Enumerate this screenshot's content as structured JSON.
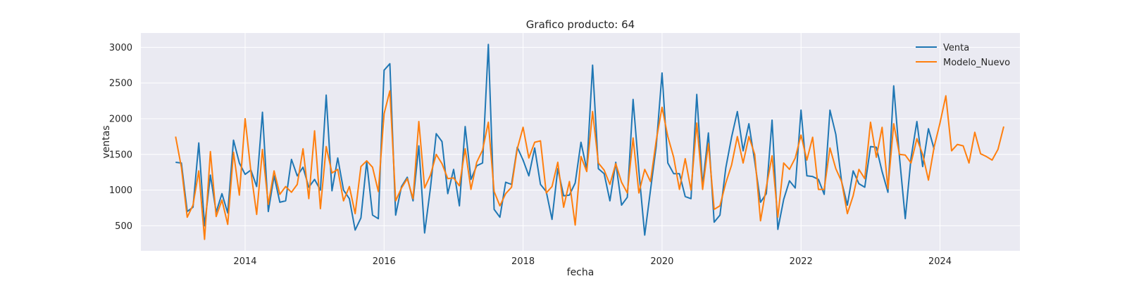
{
  "chart_data": {
    "type": "line",
    "title": "Grafico producto: 64",
    "xlabel": "fecha",
    "ylabel": "ventas",
    "xlim": [
      2012.5,
      2025.15
    ],
    "ylim": [
      150,
      3200
    ],
    "yticks": [
      500,
      1000,
      1500,
      2000,
      2500,
      3000
    ],
    "xticks": [
      2014,
      2016,
      2018,
      2020,
      2022,
      2024
    ],
    "grid": true,
    "legend_position": "top-right",
    "colors": {
      "background": "#eaeaf2",
      "Venta": "#1f77b4",
      "Modelo_Nuevo": "#ff7f0e"
    },
    "series": [
      {
        "name": "Venta",
        "start": "2013-01",
        "frequency": "monthly",
        "values": [
          1390,
          1380,
          700,
          760,
          1660,
          500,
          1210,
          690,
          950,
          680,
          1700,
          1380,
          1220,
          1280,
          1050,
          2090,
          700,
          1200,
          830,
          850,
          1430,
          1200,
          1320,
          1040,
          1150,
          1000,
          2330,
          990,
          1450,
          1000,
          880,
          440,
          610,
          1400,
          650,
          600,
          2680,
          2770,
          650,
          1050,
          1180,
          850,
          1620,
          400,
          1030,
          1790,
          1680,
          950,
          1290,
          780,
          1890,
          1150,
          1340,
          1380,
          3040,
          730,
          620,
          1110,
          1080,
          1600,
          1420,
          1200,
          1590,
          1080,
          980,
          590,
          1300,
          920,
          930,
          1100,
          1670,
          1290,
          2750,
          1300,
          1230,
          850,
          1390,
          790,
          900,
          2270,
          1270,
          370,
          1000,
          1620,
          2640,
          1380,
          1230,
          1230,
          910,
          880,
          2340,
          1060,
          1800,
          550,
          650,
          1310,
          1740,
          2100,
          1550,
          1930,
          1400,
          830,
          950,
          1980,
          450,
          870,
          1130,
          1030,
          2120,
          1200,
          1190,
          1150,
          940,
          2120,
          1780,
          1120,
          790,
          1270,
          1090,
          1040,
          1610,
          1600,
          1260,
          970,
          2460,
          1460,
          600,
          1450,
          1960,
          1330,
          1860,
          1570
        ]
      },
      {
        "name": "Modelo_Nuevo",
        "start": "2013-01",
        "frequency": "monthly",
        "values": [
          1750,
          1320,
          620,
          790,
          1270,
          310,
          1540,
          630,
          860,
          520,
          1530,
          930,
          2000,
          1260,
          660,
          1570,
          800,
          1270,
          940,
          1050,
          970,
          1080,
          1580,
          880,
          1830,
          740,
          1610,
          1240,
          1290,
          850,
          1050,
          670,
          1330,
          1410,
          1320,
          980,
          2070,
          2390,
          850,
          1030,
          1160,
          880,
          1960,
          1030,
          1210,
          1500,
          1370,
          1160,
          1170,
          1060,
          1580,
          1010,
          1390,
          1560,
          1950,
          980,
          780,
          950,
          1040,
          1580,
          1880,
          1450,
          1670,
          1690,
          960,
          1050,
          1390,
          760,
          1120,
          510,
          1470,
          1260,
          2100,
          1380,
          1280,
          1080,
          1370,
          1110,
          960,
          1730,
          960,
          1290,
          1120,
          1700,
          2160,
          1750,
          1460,
          1010,
          1440,
          1000,
          1940,
          1010,
          1650,
          730,
          780,
          1100,
          1350,
          1750,
          1380,
          1750,
          1500,
          570,
          1040,
          1480,
          620,
          1380,
          1290,
          1450,
          1770,
          1420,
          1740,
          1010,
          1010,
          1590,
          1300,
          1120,
          670,
          920,
          1290,
          1160,
          1950,
          1460,
          1880,
          1020,
          1930,
          1500,
          1490,
          1380,
          1720,
          1500,
          1140,
          1610,
          1940,
          2320,
          1550,
          1640,
          1620,
          1380,
          1810,
          1510,
          1470,
          1420,
          1570,
          1890
        ]
      }
    ]
  }
}
